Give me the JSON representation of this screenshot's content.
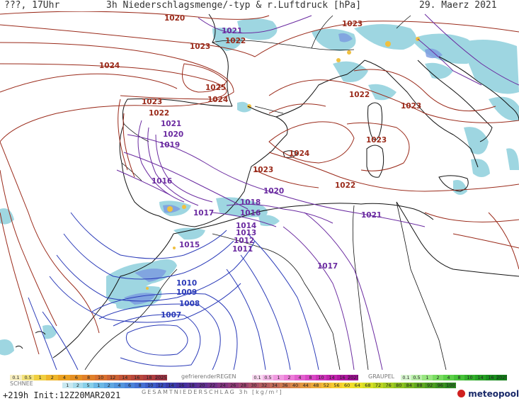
{
  "header": {
    "left": "???, 17Uhr",
    "title": "3h Niederschlagsmenge/-typ & r.Luftdruck [hPa]",
    "date": "29. Maerz 2021"
  },
  "isobars_red": [
    {
      "label": "1020"
    },
    {
      "label": "1023"
    },
    {
      "label": "1022"
    },
    {
      "label": "1023"
    },
    {
      "label": "1024"
    },
    {
      "label": "1025"
    },
    {
      "label": "1024"
    },
    {
      "label": "1023"
    },
    {
      "label": "1022"
    },
    {
      "label": "1022"
    },
    {
      "label": "1023"
    },
    {
      "label": "1023"
    },
    {
      "label": "1024"
    },
    {
      "label": "1023"
    },
    {
      "label": "1022"
    }
  ],
  "isobars_purple": [
    {
      "label": "1021"
    },
    {
      "label": "1021"
    },
    {
      "label": "1020"
    },
    {
      "label": "1019"
    },
    {
      "label": "1016"
    },
    {
      "label": "1018"
    },
    {
      "label": "1020"
    },
    {
      "label": "1017"
    },
    {
      "label": "1016"
    },
    {
      "label": "1021"
    },
    {
      "label": "1014"
    },
    {
      "label": "1013"
    },
    {
      "label": "1012"
    },
    {
      "label": "1011"
    },
    {
      "label": "1015"
    },
    {
      "label": "1017"
    }
  ],
  "isobars_blue": [
    {
      "label": "1010"
    },
    {
      "label": "1009"
    },
    {
      "label": "1008"
    },
    {
      "label": "1007"
    }
  ],
  "legend": {
    "snow_label": "SCHNEE",
    "snow_values": [
      "0.1",
      "0.5",
      "1",
      "2",
      "4",
      "6",
      "8",
      "10",
      "12",
      "14",
      "16",
      "18",
      "2025+"
    ],
    "freezing_label": "gefrierenderREGEN",
    "freezing_values": [
      "0.1",
      "0.5",
      "1",
      "2",
      "4",
      "8",
      "10",
      "14",
      "16",
      "2025+"
    ],
    "graupel_label": "GRAUPEL",
    "graupel_values": [
      "0.1",
      "0.5",
      "1",
      "2",
      "4",
      "8",
      "10",
      "14",
      "16",
      "2025+"
    ],
    "rain_values": [
      "1",
      "2",
      "5",
      "1",
      "2",
      "4",
      "6",
      "8",
      "10",
      "12",
      "14",
      "16",
      "18",
      "20",
      "22",
      "24",
      "26",
      "28",
      "30",
      "32",
      "34",
      "36",
      "40",
      "44",
      "48",
      "52",
      "56",
      "60",
      "64",
      "68",
      "72",
      "76",
      "80",
      "84",
      "88",
      "92",
      "96",
      "100"
    ],
    "total_label": "GESAMTNIEDERSCHLAG 3h [kg/m²]",
    "colors": {
      "snow": [
        "#f7eec0",
        "#f3e27a",
        "#f0cf40",
        "#eeb52a",
        "#eaa020",
        "#e59024",
        "#e0802a",
        "#d87030",
        "#cc6234",
        "#c25438",
        "#b8483c",
        "#ae3e40",
        "#a03444"
      ],
      "freezing": [
        "#f8d8f0",
        "#f4b8e8",
        "#f09ae0",
        "#ec7cd8",
        "#e260ce",
        "#d848c4",
        "#cc34b8",
        "#c024ac",
        "#b018a0",
        "#a01094"
      ],
      "graupel": [
        "#d8f6d0",
        "#b8eea8",
        "#98e680",
        "#78dc60",
        "#5cd048",
        "#46c238",
        "#34b02c",
        "#26a024",
        "#1a8e1e",
        "#128018"
      ],
      "rain": [
        "#c8e8f0",
        "#a8dcec",
        "#88cfe8",
        "#6cb8e4",
        "#5ea6e0",
        "#5294dc",
        "#4a82d8",
        "#4470d2",
        "#3e5ec8",
        "#3a4cbc",
        "#3a3caa",
        "#4430a0",
        "#523098",
        "#603090",
        "#703088",
        "#823480",
        "#903a78",
        "#9e4470",
        "#aa5068",
        "#b45c60",
        "#c06a58",
        "#cc7850",
        "#d88848",
        "#e29840",
        "#ecaa3a",
        "#f2bc34",
        "#f6cc30",
        "#f4dc2c",
        "#e8e028",
        "#d4de24",
        "#bcd420",
        "#a4ca20",
        "#8cc020",
        "#76b420",
        "#60a820",
        "#4c9c20",
        "#3a9020",
        "#2a8420"
      ],
      "isobar_red": "#9a2a1a",
      "isobar_purple": "#6a2aa0",
      "isobar_blue": "#2a3ab8",
      "precip": "#8ed0dc"
    }
  },
  "footer": {
    "forecast": "+219h",
    "init": "Init:12Z20MAR2021"
  },
  "logo": {
    "text": "meteopool.org"
  }
}
